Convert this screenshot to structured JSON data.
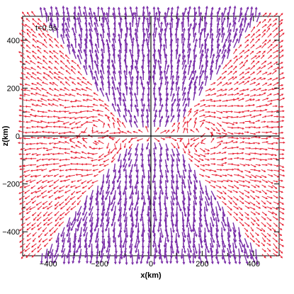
{
  "chart_data": {
    "type": "vector-field",
    "title": "",
    "annotation": "t=0.5s",
    "xlabel": "x(km)",
    "ylabel": "z(km)",
    "xlim": [
      -500,
      500
    ],
    "ylim": [
      -500,
      500
    ],
    "x_ticks": [
      -400,
      -200,
      0,
      200,
      400
    ],
    "y_ticks": [
      -400,
      -200,
      0,
      200,
      400
    ],
    "x_tick_labels": [
      "−400",
      "−200",
      "0",
      "200",
      "400"
    ],
    "y_tick_labels": [
      "−400",
      "−200",
      "0",
      "200",
      "400"
    ],
    "grid": false,
    "reference_lines": [
      {
        "orientation": "vertical",
        "value": 0
      },
      {
        "orientation": "horizontal",
        "value": 0
      }
    ],
    "series": [
      {
        "color": "#7a2ea8",
        "region": "polar outflow lobes along ±z, widening from origin to the top and bottom edges"
      },
      {
        "color": "#e8283a",
        "region": "equatorial region with vortices near x = ±180 km, z = ±60 km"
      }
    ],
    "grid_step": 22
  }
}
